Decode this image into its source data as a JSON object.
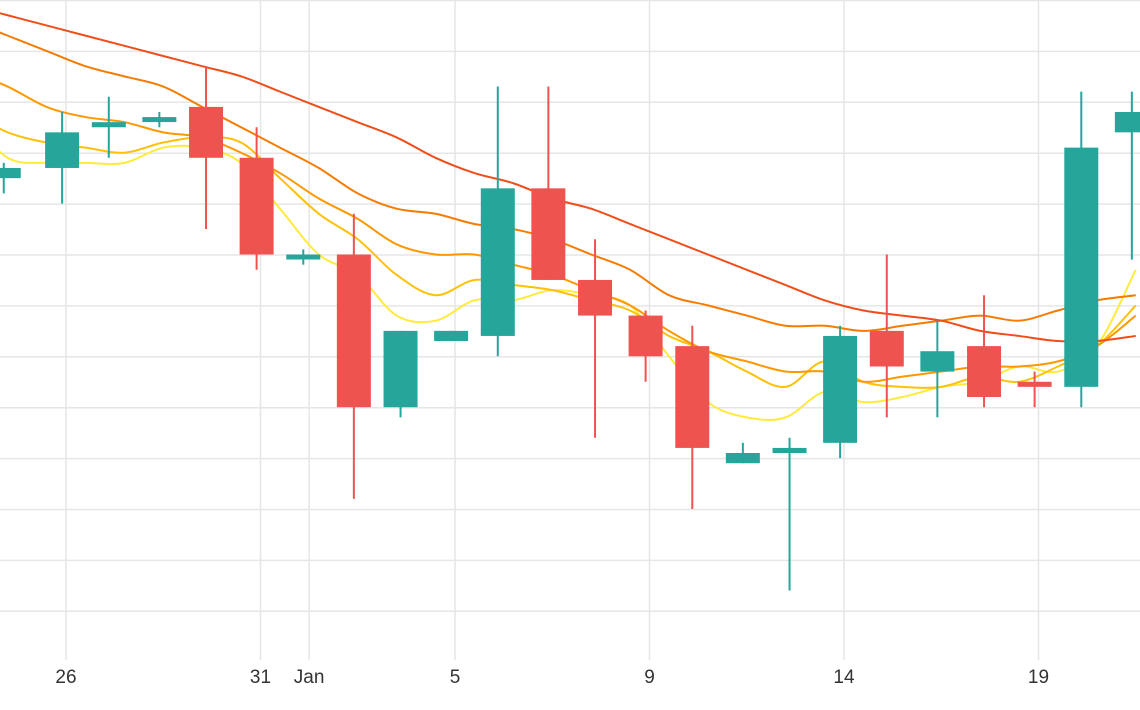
{
  "chart_data": {
    "type": "candlestick",
    "title": "",
    "xlabel": "",
    "ylabel": "",
    "ylim": [
      7.5,
      21.1
    ],
    "grid": true,
    "colors": {
      "up": "#26a69a",
      "down": "#ef5350",
      "grid": "#e6e6e6",
      "tick_text": "#333333",
      "ma_colors": [
        "#ffeb3b",
        "#ffc107",
        "#ff9800",
        "#f57c00",
        "#ef4d1a"
      ]
    },
    "x_tick_labels": [
      {
        "x": 26,
        "label": "26"
      },
      {
        "x": 31,
        "label": "31"
      },
      {
        "x": 32.25,
        "label": "Jan"
      },
      {
        "x": 36,
        "label": "5"
      },
      {
        "x": 41,
        "label": "9"
      },
      {
        "x": 46,
        "label": "14"
      },
      {
        "x": 51,
        "label": "19"
      }
    ],
    "candles": [
      {
        "x": 24.4,
        "o": 17.6,
        "h": 17.9,
        "l": 17.3,
        "c": 17.8
      },
      {
        "x": 25.9,
        "o": 17.8,
        "h": 18.9,
        "l": 17.1,
        "c": 18.5
      },
      {
        "x": 27.1,
        "o": 18.6,
        "h": 19.2,
        "l": 18.0,
        "c": 18.7
      },
      {
        "x": 28.4,
        "o": 18.8,
        "h": 18.9,
        "l": 18.6,
        "c": 18.8
      },
      {
        "x": 29.6,
        "o": 19.0,
        "h": 19.8,
        "l": 16.6,
        "c": 18.0
      },
      {
        "x": 30.9,
        "o": 18.0,
        "h": 18.6,
        "l": 15.8,
        "c": 16.1
      },
      {
        "x": 32.1,
        "o": 16.1,
        "h": 16.2,
        "l": 15.9,
        "c": 16.1
      },
      {
        "x": 33.4,
        "o": 16.1,
        "h": 16.9,
        "l": 11.3,
        "c": 13.1
      },
      {
        "x": 34.6,
        "o": 13.1,
        "h": 14.6,
        "l": 12.9,
        "c": 14.6
      },
      {
        "x": 35.9,
        "o": 14.4,
        "h": 14.6,
        "l": 14.4,
        "c": 14.6
      },
      {
        "x": 37.1,
        "o": 14.5,
        "h": 19.4,
        "l": 14.1,
        "c": 17.4
      },
      {
        "x": 38.4,
        "o": 17.4,
        "h": 19.4,
        "l": 15.6,
        "c": 15.6
      },
      {
        "x": 39.6,
        "o": 15.6,
        "h": 16.4,
        "l": 12.5,
        "c": 14.9
      },
      {
        "x": 40.9,
        "o": 14.9,
        "h": 15.0,
        "l": 13.6,
        "c": 14.1
      },
      {
        "x": 42.1,
        "o": 14.3,
        "h": 14.7,
        "l": 11.1,
        "c": 12.3
      },
      {
        "x": 43.4,
        "o": 12.0,
        "h": 12.4,
        "l": 12.0,
        "c": 12.2
      },
      {
        "x": 44.6,
        "o": 12.2,
        "h": 12.5,
        "l": 9.5,
        "c": 12.3
      },
      {
        "x": 45.9,
        "o": 12.4,
        "h": 14.7,
        "l": 12.1,
        "c": 14.5
      },
      {
        "x": 47.1,
        "o": 14.6,
        "h": 16.1,
        "l": 12.9,
        "c": 13.9
      },
      {
        "x": 48.4,
        "o": 13.8,
        "h": 14.8,
        "l": 12.9,
        "c": 14.2
      },
      {
        "x": 49.6,
        "o": 14.3,
        "h": 15.3,
        "l": 13.1,
        "c": 13.3
      },
      {
        "x": 50.9,
        "o": 13.6,
        "h": 13.8,
        "l": 13.1,
        "c": 13.5
      },
      {
        "x": 52.1,
        "o": 13.5,
        "h": 19.3,
        "l": 13.1,
        "c": 18.2
      },
      {
        "x": 53.4,
        "o": 18.5,
        "h": 19.3,
        "l": 16.0,
        "c": 18.9
      }
    ],
    "moving_averages": [
      {
        "color": "#ffeb3b",
        "points": [
          [
            23.5,
            18.8
          ],
          [
            24.5,
            18.0
          ],
          [
            25.5,
            17.9
          ],
          [
            26.5,
            17.9
          ],
          [
            27.5,
            17.9
          ],
          [
            28.5,
            18.2
          ],
          [
            29.5,
            18.2
          ],
          [
            30.5,
            17.9
          ],
          [
            31.5,
            17.0
          ],
          [
            32.5,
            16.1
          ],
          [
            33.5,
            15.7
          ],
          [
            34.5,
            14.9
          ],
          [
            35.5,
            14.8
          ],
          [
            36.5,
            15.2
          ],
          [
            37.5,
            15.2
          ],
          [
            38.5,
            15.4
          ],
          [
            39.5,
            15.3
          ],
          [
            40.5,
            15.1
          ],
          [
            41.5,
            14.1
          ],
          [
            42.5,
            13.2
          ],
          [
            43.5,
            12.9
          ],
          [
            44.5,
            12.9
          ],
          [
            45.5,
            13.4
          ],
          [
            46.5,
            13.2
          ],
          [
            47.5,
            13.3
          ],
          [
            48.5,
            13.5
          ],
          [
            49.5,
            13.6
          ],
          [
            50.5,
            13.9
          ],
          [
            51.5,
            13.8
          ],
          [
            52.5,
            14.3
          ],
          [
            53.5,
            15.8
          ]
        ]
      },
      {
        "color": "#ffc107",
        "points": [
          [
            23.5,
            18.9
          ],
          [
            24.5,
            18.5
          ],
          [
            25.5,
            18.3
          ],
          [
            26.5,
            18.2
          ],
          [
            27.5,
            18.1
          ],
          [
            28.5,
            18.3
          ],
          [
            29.5,
            18.4
          ],
          [
            30.5,
            18.3
          ],
          [
            31.5,
            17.6
          ],
          [
            32.5,
            16.9
          ],
          [
            33.5,
            16.4
          ],
          [
            34.5,
            15.7
          ],
          [
            35.5,
            15.3
          ],
          [
            36.5,
            15.6
          ],
          [
            37.5,
            15.5
          ],
          [
            38.5,
            15.4
          ],
          [
            39.5,
            15.2
          ],
          [
            40.5,
            15.0
          ],
          [
            41.5,
            14.5
          ],
          [
            42.5,
            14.2
          ],
          [
            43.5,
            13.8
          ],
          [
            44.5,
            13.5
          ],
          [
            45.5,
            14.0
          ],
          [
            46.5,
            13.6
          ],
          [
            47.5,
            13.5
          ],
          [
            48.5,
            13.5
          ],
          [
            49.5,
            13.7
          ],
          [
            50.5,
            13.6
          ],
          [
            51.5,
            13.9
          ],
          [
            52.5,
            14.3
          ],
          [
            53.5,
            15.1
          ]
        ]
      },
      {
        "color": "#ff9800",
        "points": [
          [
            23.5,
            19.7
          ],
          [
            24.5,
            19.4
          ],
          [
            25.5,
            19.0
          ],
          [
            26.5,
            18.8
          ],
          [
            27.5,
            18.7
          ],
          [
            28.5,
            18.5
          ],
          [
            29.5,
            18.4
          ],
          [
            30.5,
            18.1
          ],
          [
            31.5,
            17.7
          ],
          [
            32.5,
            17.2
          ],
          [
            33.5,
            16.8
          ],
          [
            34.5,
            16.3
          ],
          [
            35.5,
            16.1
          ],
          [
            36.5,
            16.1
          ],
          [
            37.5,
            15.9
          ],
          [
            38.5,
            15.7
          ],
          [
            39.5,
            15.4
          ],
          [
            40.5,
            15.1
          ],
          [
            41.5,
            14.6
          ],
          [
            42.5,
            14.2
          ],
          [
            43.5,
            14.0
          ],
          [
            44.5,
            13.8
          ],
          [
            45.5,
            13.8
          ],
          [
            46.5,
            13.6
          ],
          [
            47.5,
            13.7
          ],
          [
            48.5,
            13.8
          ],
          [
            49.5,
            13.9
          ],
          [
            50.5,
            13.9
          ],
          [
            51.5,
            14.0
          ],
          [
            52.5,
            14.3
          ],
          [
            53.5,
            14.9
          ]
        ]
      },
      {
        "color": "#f57c00",
        "points": [
          [
            23.5,
            20.7
          ],
          [
            24.5,
            20.4
          ],
          [
            25.5,
            20.1
          ],
          [
            26.5,
            19.8
          ],
          [
            27.5,
            19.6
          ],
          [
            28.5,
            19.4
          ],
          [
            29.5,
            19.0
          ],
          [
            30.5,
            18.6
          ],
          [
            31.5,
            18.2
          ],
          [
            32.5,
            17.8
          ],
          [
            33.5,
            17.3
          ],
          [
            34.5,
            17.0
          ],
          [
            35.5,
            16.9
          ],
          [
            36.5,
            16.7
          ],
          [
            37.5,
            16.6
          ],
          [
            38.5,
            16.4
          ],
          [
            39.5,
            16.1
          ],
          [
            40.5,
            15.8
          ],
          [
            41.5,
            15.3
          ],
          [
            42.5,
            15.1
          ],
          [
            43.5,
            14.9
          ],
          [
            44.5,
            14.7
          ],
          [
            45.5,
            14.7
          ],
          [
            46.5,
            14.6
          ],
          [
            47.5,
            14.7
          ],
          [
            48.5,
            14.8
          ],
          [
            49.5,
            14.9
          ],
          [
            50.5,
            14.8
          ],
          [
            51.5,
            15.0
          ],
          [
            52.5,
            15.2
          ],
          [
            53.5,
            15.3
          ]
        ]
      },
      {
        "color": "#ef4d1a",
        "points": [
          [
            23.5,
            21.0
          ],
          [
            24.5,
            20.8
          ],
          [
            25.5,
            20.6
          ],
          [
            26.5,
            20.4
          ],
          [
            27.5,
            20.2
          ],
          [
            28.5,
            20.0
          ],
          [
            29.5,
            19.8
          ],
          [
            30.5,
            19.6
          ],
          [
            31.5,
            19.3
          ],
          [
            32.5,
            19.0
          ],
          [
            33.5,
            18.7
          ],
          [
            34.5,
            18.4
          ],
          [
            35.5,
            18.0
          ],
          [
            36.5,
            17.7
          ],
          [
            37.5,
            17.5
          ],
          [
            38.5,
            17.2
          ],
          [
            39.5,
            17.0
          ],
          [
            40.5,
            16.7
          ],
          [
            41.5,
            16.4
          ],
          [
            42.5,
            16.1
          ],
          [
            43.5,
            15.8
          ],
          [
            44.5,
            15.5
          ],
          [
            45.5,
            15.2
          ],
          [
            46.5,
            15.0
          ],
          [
            47.5,
            14.9
          ],
          [
            48.5,
            14.8
          ],
          [
            49.5,
            14.6
          ],
          [
            50.5,
            14.5
          ],
          [
            51.5,
            14.4
          ],
          [
            52.5,
            14.4
          ],
          [
            53.5,
            14.5
          ]
        ]
      }
    ]
  }
}
